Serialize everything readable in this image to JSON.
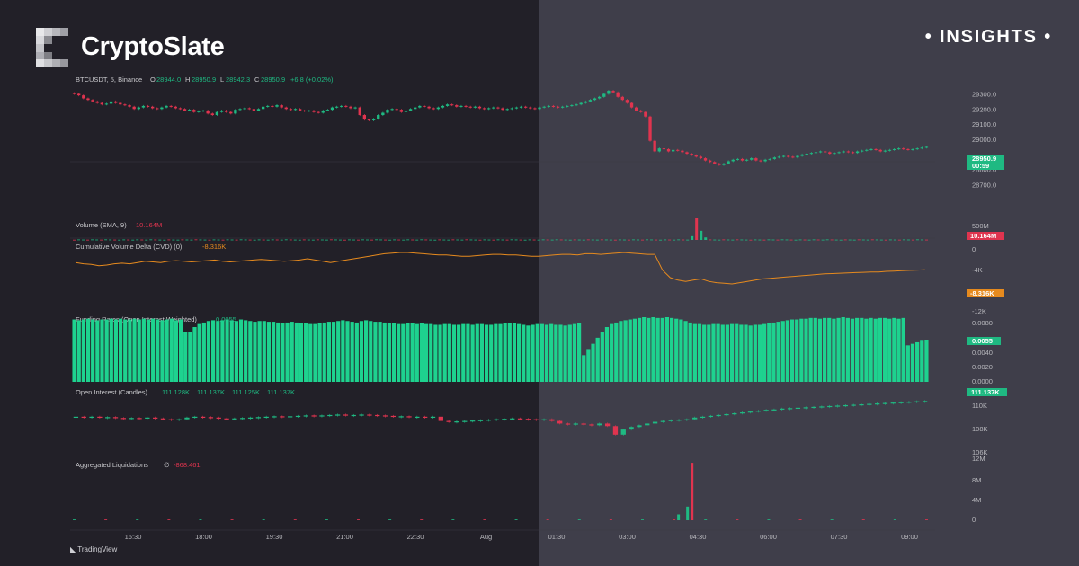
{
  "brand": {
    "name": "CryptoSlate",
    "tag": "INSIGHTS"
  },
  "footer": {
    "tradingview": "TradingView"
  },
  "colors": {
    "up": "#1fb982",
    "down": "#e0344f",
    "cvd": "#e68a1e",
    "funding": "#1ed28f",
    "left_bg": "#222028",
    "right_bg": "#3f3e4a"
  },
  "chart_data": [
    {
      "type": "candlestick",
      "title": "BTCUSDT, 5, Binance",
      "ohlc_header": {
        "o_label": "O",
        "o": "28944.0",
        "h_label": "H",
        "h": "28950.9",
        "l_label": "L",
        "l": "28942.3",
        "c_label": "C",
        "c": "28950.9",
        "change": "+6.8 (+0.02%)"
      },
      "last_price": "28950.9",
      "countdown": "00:59",
      "y_ticks": [
        "29300.0",
        "29200.0",
        "29100.0",
        "29000.0",
        "28800.0",
        "28700.0"
      ],
      "ylim": [
        28650,
        29350
      ],
      "close_series": [
        29300,
        29290,
        29270,
        29260,
        29250,
        29240,
        29230,
        29235,
        29250,
        29240,
        29230,
        29225,
        29215,
        29200,
        29210,
        29220,
        29215,
        29205,
        29200,
        29210,
        29220,
        29215,
        29205,
        29200,
        29190,
        29195,
        29180,
        29185,
        29190,
        29170,
        29160,
        29180,
        29190,
        29180,
        29170,
        29195,
        29200,
        29205,
        29200,
        29190,
        29200,
        29215,
        29220,
        29215,
        29225,
        29210,
        29200,
        29195,
        29200,
        29190,
        29185,
        29190,
        29180,
        29175,
        29190,
        29195,
        29210,
        29215,
        29220,
        29215,
        29205,
        29210,
        29160,
        29130,
        29125,
        29135,
        29160,
        29175,
        29195,
        29200,
        29195,
        29180,
        29190,
        29200,
        29210,
        29220,
        29215,
        29205,
        29200,
        29210,
        29220,
        29230,
        29225,
        29215,
        29220,
        29215,
        29210,
        29215,
        29205,
        29200,
        29205,
        29210,
        29205,
        29195,
        29200,
        29205,
        29210,
        29215,
        29210,
        29205,
        29200,
        29210,
        29215,
        29220,
        29215,
        29210,
        29215,
        29220,
        29225,
        29230,
        29240,
        29250,
        29260,
        29270,
        29280,
        29300,
        29320,
        29310,
        29280,
        29260,
        29240,
        29210,
        29190,
        29180,
        29150,
        28990,
        28920,
        28940,
        28935,
        28920,
        28930,
        28925,
        28915,
        28905,
        28895,
        28885,
        28875,
        28860,
        28850,
        28840,
        28830,
        28840,
        28855,
        28865,
        28870,
        28860,
        28865,
        28875,
        28860,
        28855,
        28865,
        28870,
        28880,
        28885,
        28890,
        28885,
        28880,
        28890,
        28900,
        28905,
        28910,
        28915,
        28920,
        28915,
        28905,
        28910,
        28915,
        28920,
        28915,
        28910,
        28920,
        28925,
        28930,
        28935,
        28930,
        28920,
        28925,
        28930,
        28935,
        28940,
        28935,
        28930,
        28935,
        28940,
        28945,
        28950
      ]
    },
    {
      "type": "bar",
      "title": "Volume (SMA, 9)",
      "value": "10.164M",
      "y_ticks": [
        "500M",
        "0"
      ],
      "spike_indices": [
        137,
        138,
        139,
        140
      ],
      "spike_values": [
        90,
        520,
        220,
        60
      ],
      "base_value": 8
    },
    {
      "type": "line",
      "title": "Cumulative Volume Delta (CVD) (0)",
      "value": "-8.316K",
      "y_ticks": [
        "0",
        "-4K",
        "-12K"
      ],
      "series": [
        0.2,
        0.1,
        0.05,
        -0.05,
        0.0,
        0.1,
        0.15,
        0.1,
        0.2,
        0.3,
        0.25,
        0.2,
        0.3,
        0.35,
        0.3,
        0.25,
        0.3,
        0.35,
        0.4,
        0.3,
        0.25,
        0.3,
        0.35,
        0.4,
        0.45,
        0.4,
        0.35,
        0.3,
        0.35,
        0.4,
        0.5,
        0.4,
        0.3,
        0.2,
        0.3,
        0.4,
        0.5,
        0.6,
        0.7,
        0.8,
        0.9,
        0.95,
        1.0,
        1.0,
        0.95,
        0.9,
        0.85,
        0.8,
        0.8,
        0.75,
        0.7,
        0.7,
        0.75,
        0.8,
        0.85,
        0.85,
        0.8,
        0.8,
        0.75,
        0.7,
        0.7,
        0.75,
        0.8,
        0.85,
        0.85,
        0.8,
        0.9,
        0.9,
        0.85,
        0.9,
        0.95,
        1.0,
        0.95,
        0.9,
        0.85,
        0.85,
        -0.4,
        -1.0,
        -1.2,
        -1.3,
        -1.2,
        -1.1,
        -1.3,
        -1.4,
        -1.45,
        -1.5,
        -1.4,
        -1.3,
        -1.2,
        -1.1,
        -1.05,
        -1.0,
        -0.95,
        -0.9,
        -0.85,
        -0.8,
        -0.75,
        -0.7,
        -0.68,
        -0.65,
        -0.62,
        -0.6,
        -0.58,
        -0.55,
        -0.55,
        -0.5,
        -0.48,
        -0.45,
        -0.42,
        -0.4,
        -0.38
      ],
      "series_scale_k": 4
    },
    {
      "type": "bar",
      "title": "Funding Rates (Open Interest Weighted)",
      "value": "0.0055",
      "y_ticks": [
        "0.0080",
        "0.0040",
        "0.0020",
        "0.0000"
      ],
      "last_badge": "0.0055",
      "ylim": [
        0,
        0.0085
      ],
      "values": [
        0.0082,
        0.0081,
        0.0082,
        0.0083,
        0.0082,
        0.0081,
        0.0082,
        0.0082,
        0.0083,
        0.0082,
        0.0083,
        0.0082,
        0.0082,
        0.0083,
        0.0082,
        0.0083,
        0.0082,
        0.0083,
        0.0082,
        0.0081,
        0.0082,
        0.0083,
        0.0081,
        0.0082,
        0.0065,
        0.0066,
        0.0072,
        0.0076,
        0.0078,
        0.008,
        0.0081,
        0.008,
        0.0081,
        0.0082,
        0.0081,
        0.008,
        0.0082,
        0.0081,
        0.008,
        0.0079,
        0.008,
        0.008,
        0.0079,
        0.0079,
        0.0078,
        0.0077,
        0.0078,
        0.0079,
        0.0078,
        0.0077,
        0.0077,
        0.0076,
        0.0076,
        0.0077,
        0.0078,
        0.0079,
        0.0079,
        0.008,
        0.0081,
        0.008,
        0.0079,
        0.0078,
        0.008,
        0.0081,
        0.008,
        0.0079,
        0.0079,
        0.0078,
        0.0077,
        0.0077,
        0.0076,
        0.0076,
        0.0077,
        0.0077,
        0.0076,
        0.0077,
        0.0076,
        0.0076,
        0.0075,
        0.0075,
        0.0076,
        0.0076,
        0.0075,
        0.0075,
        0.0076,
        0.0076,
        0.0075,
        0.0076,
        0.0076,
        0.0075,
        0.0075,
        0.0076,
        0.0076,
        0.0077,
        0.0077,
        0.0077,
        0.0076,
        0.0075,
        0.0074,
        0.0075,
        0.0076,
        0.0076,
        0.0075,
        0.0076,
        0.0075,
        0.0075,
        0.0074,
        0.0075,
        0.0076,
        0.0077,
        0.0035,
        0.0042,
        0.005,
        0.0058,
        0.0065,
        0.0072,
        0.0076,
        0.0078,
        0.008,
        0.0081,
        0.0082,
        0.0083,
        0.0084,
        0.0085,
        0.0084,
        0.0085,
        0.0084,
        0.0084,
        0.0085,
        0.0084,
        0.0083,
        0.0082,
        0.008,
        0.0078,
        0.0076,
        0.0076,
        0.0075,
        0.0075,
        0.0076,
        0.0076,
        0.0075,
        0.0075,
        0.0076,
        0.0076,
        0.0075,
        0.0075,
        0.0074,
        0.0075,
        0.0075,
        0.0076,
        0.0077,
        0.0078,
        0.0079,
        0.008,
        0.0081,
        0.0082,
        0.0082,
        0.0083,
        0.0083,
        0.0084,
        0.0084,
        0.0083,
        0.0084,
        0.0084,
        0.0083,
        0.0084,
        0.0085,
        0.0084,
        0.0083,
        0.0084,
        0.0084,
        0.0083,
        0.0084,
        0.0083,
        0.0084,
        0.0084,
        0.0083,
        0.0084,
        0.0083,
        0.0084,
        0.0048,
        0.005,
        0.0052,
        0.0054,
        0.0055
      ]
    },
    {
      "type": "candlestick",
      "title": "Open Interest (Candles)",
      "ohlc_values": [
        "111.128K",
        "111.137K",
        "111.125K",
        "111.137K"
      ],
      "last_badge": "111.137K",
      "y_ticks": [
        "110K",
        "108K",
        "106K"
      ],
      "ylim": [
        105.5,
        111.8
      ],
      "close_series": [
        109.3,
        109.25,
        109.3,
        109.2,
        109.25,
        109.15,
        109.1,
        109.15,
        109.1,
        109.2,
        109.1,
        109.0,
        108.9,
        109.0,
        109.2,
        109.3,
        109.25,
        109.2,
        109.1,
        109.0,
        109.1,
        109.15,
        109.2,
        109.25,
        109.3,
        109.35,
        109.3,
        109.35,
        109.4,
        109.45,
        109.4,
        109.45,
        109.5,
        109.55,
        109.5,
        109.5,
        109.55,
        109.5,
        109.45,
        109.4,
        109.35,
        109.35,
        109.3,
        109.3,
        109.25,
        109.3,
        108.8,
        108.7,
        108.75,
        108.8,
        108.85,
        108.9,
        108.95,
        109.0,
        109.05,
        109.1,
        109.05,
        109.0,
        108.95,
        109.0,
        108.8,
        108.5,
        108.45,
        108.5,
        108.4,
        108.3,
        108.5,
        108.2,
        107.2,
        107.8,
        108.1,
        108.3,
        108.5,
        108.7,
        108.8,
        108.9,
        108.95,
        109.0,
        109.2,
        109.3,
        109.4,
        109.5,
        109.6,
        109.7,
        109.8,
        109.9,
        110.0,
        110.1,
        110.15,
        110.25,
        110.3,
        110.35,
        110.4,
        110.45,
        110.5,
        110.55,
        110.6,
        110.65,
        110.7,
        110.75,
        110.8,
        110.85,
        110.9,
        110.95,
        111.0,
        111.05,
        111.1,
        111.137
      ]
    },
    {
      "type": "bar",
      "title": "Aggregated Liquidations",
      "glyph": "∅",
      "value": "-868.461",
      "y_ticks": [
        "12M",
        "8M",
        "4M",
        "0"
      ],
      "ylim": [
        0,
        12
      ],
      "spike_indices": [
        134,
        136,
        137
      ],
      "spike_values": [
        1.2,
        2.8,
        11.8
      ]
    }
  ],
  "x_axis_labels": [
    "16:30",
    "18:00",
    "19:30",
    "21:00",
    "22:30",
    "Aug",
    "01:30",
    "03:00",
    "04:30",
    "06:00",
    "07:30",
    "09:00"
  ]
}
